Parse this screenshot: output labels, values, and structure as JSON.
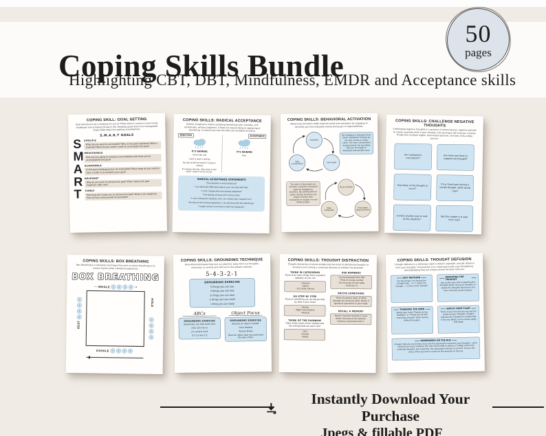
{
  "header": {
    "title": "Coping Skills Bundle",
    "subtitle": "Highlighting CBT, DBT, Mindfulness, EMDR and Acceptance skills",
    "badge": {
      "number": "50",
      "label": "pages"
    }
  },
  "footer": {
    "line1": "Instantly Download Your Purchase",
    "line2": "Jpegs & fillable PDF"
  },
  "colors": {
    "background": "#f0ebe4",
    "header_band": "#fcfbf9",
    "paper": "#fffefd",
    "blue_box": "#cfe4f0",
    "tan_box": "#e9e1d7",
    "badge_fill": "#dde3ea",
    "ink": "#1c1c1c"
  },
  "pages": {
    "goal_setting": {
      "title": "COPING SKILL: GOAL SETTING",
      "intro": "Goal setting acts as a roadmap for you to follow when it comes to overcoming challenges and achieving things in life. Breaking goals down into manageable steps helps keep from getting overwhelmed.",
      "subheading": "S.M.A.R.T GOALS",
      "items": [
        {
          "letter": "S",
          "label": "SPECIFIC",
          "text": "What do you want to accomplish? Why is this goal important? Who is involved? What do you need in order to accomplish this goal?"
        },
        {
          "letter": "M",
          "label": "MEASURABLE",
          "text": "How are you going to measure your progress and know you've accomplished this goal?"
        },
        {
          "letter": "A",
          "label": "ACHIEVABLE",
          "text": "Is this goal challenging but not impossible? What steps do you need to take in order to accomplish your goal?"
        },
        {
          "letter": "R",
          "label": "RELEVANT",
          "text": "Why do you want to achieve this goal? What makes this goal important right now?"
        },
        {
          "letter": "T",
          "label": "TIMELY",
          "text": "How long will it take you to achieve this goal? What is the deadline? How will you hold yourself accountable?"
        }
      ]
    },
    "radical_acceptance": {
      "title": "COPING SKILLS: RADICAL ACCEPTANCE",
      "intro": "Radical acceptance means accepting something fully, mentally, and emotionally, without judgment. It does not require liking or approving of something. It means only that the facts are accepted as reality.",
      "left": {
        "label": "REJECTION",
        "caption": "IT'S RAINING",
        "lines": [
          "I don't like rain",
          "I wish it wasn't raining",
          "My day would be better if it wasn't raining",
          "It's always like this. Why does it rain when I want it to be sunny?"
        ]
      },
      "right": {
        "label": "ACCEPTANCE",
        "caption": "IT'S RAINING",
        "lines": [
          "Yeah."
        ]
      },
      "box": {
        "title": "RADICAL ACCEPTANCE STATEMENTS",
        "lines": [
          "\"This situation is only temporary\"",
          "\"I've dealt with difficulties before and I can deal with this\"",
          "\"I can't change what has already happened\"",
          "\"This feeling will pass and I will be okay\"",
          "\"I can't change the situation, but I can control how I respond to it\"",
          "\"It's okay to feel anxious/upset/sad. I can still deal with this effectively\"",
          "\"I might not like it, but this is what has happened\""
        ]
      }
    },
    "behavioral_activation": {
      "title": "COPING SKILLS:  BEHAVIORAL ACTIVATION",
      "intro": "Behavioral activation helps improve mood and motivation by engaging in activities you find enjoyable and by being part of responsibilities.",
      "cycle1": [
        "Inactivity",
        "Low mood",
        "Stay unmotivated"
      ],
      "note1": "By engaging in behaviors that cause unpleasant feelings we can then create a vicious cycle. The more unmotivated a person feels, the less likely they are to engage in behaviors that benefit them.",
      "note2": "The idea is that people can 'activate' a positive emotional state by engaging in activities. By starting with an easier activity someone can slowly increase their motivation to engage in more difficult tasks.",
      "cycle2": [
        "Do an activity",
        "Feel better about yourself",
        "More motivation"
      ]
    },
    "challenge_negative_thoughts": {
      "title": "COPING SKILLS:  CHALLENGE NEGATIVE THOUGHTS",
      "intro": "Challenging negative thoughts is a practice of reframing your negative self-talk to create a positive shift in your mindset. This technique will help you consider things from multiple angles, facts-based opinions, and look at the whole picture.",
      "cards": [
        "Am I jumping to conclusions?",
        "Are there any facts to support this thought?",
        "How likely is this thought to occur?",
        "If my friend was having a similar thought, what would I say?",
        "Is there another way to look at the situation?",
        "Will this matter in a year from now?"
      ]
    },
    "box_breathing": {
      "title": "COPING SKILLS: BOX BREATHING",
      "intro": "Box Breathing is a relaxation technique that aims to return breathing to its normal rhythm after a stressful experience.",
      "display_title": "BOX BREATHING",
      "sides": {
        "top": "INHALE",
        "right": "HOLD",
        "bottom": "EXHALE",
        "left": "REST"
      },
      "counts": [
        "1",
        "2",
        "3",
        "4"
      ]
    },
    "grounding_technique": {
      "title": "COPING SKILLS:  GROUNDING TECHNIQUE",
      "intro": "Grounding techniques help turn our attention away from our thoughts, memories, or worries and refocus on the present moment.",
      "five": {
        "heading": "5-4-3-2-1",
        "box_title": "GROUNDING EXERCISE",
        "lines": [
          "5 things you can see",
          "4 things you can feel",
          "3 things you can hear",
          "2 things you can smell",
          "1 thing you can taste"
        ]
      },
      "abcs": {
        "heading": "ABCs",
        "box_title": "GROUNDING EXERCISE",
        "lines": [
          "Something I see that starts with:",
          "A B C D E F G H I",
          "J K L M N O P Q R",
          "S T U V W X Y Z"
        ]
      },
      "object_focus": {
        "heading": "Object Focus",
        "box_title": "GROUNDING EXERCISE",
        "lines": [
          "Describe an object in detail:",
          "Color      Shadow",
          "Texture      Shape",
          "Touch an object near you and notice the way it feels."
        ]
      }
    },
    "thought_distraction": {
      "title": "COPING SKILLS:  THOUGHT DISTRACTION",
      "intro": "Thought distraction involves recognizing the onset of distressing thoughts or emotions and making a conscious decision to redirect the attention.",
      "left_sections": [
        {
          "h": "THINK IN CATEGORIES",
          "text": "Think of as many things from a random category as you can",
          "box": [
            "- Animals",
            "- Sports",
            "- Ice Cream Flavors"
          ]
        },
        {
          "h": "GO STEP BY STEP",
          "text": "Think of something you do and go step by step in your head",
          "box": [
            "- Recipe",
            "- Night Time Routine",
            "- Packing"
          ]
        },
        {
          "h": "THINK OF THE RAINBOW",
          "text": "Think of the colors of the rainbow and list 3 things that are each color",
          "box": [
            "- Red",
            "- Orange",
            "- Yellow"
          ]
        }
      ],
      "right_sections": [
        {
          "h": "USE NUMBERS",
          "box": [
            "- Count backward from 100",
            "- Think of a large number",
            "- Run through a times table",
            "- Count by 7s"
          ]
        },
        {
          "h": "RECITE SOMETHING",
          "box": [
            "Think of a poem, song, or book passage you know by heart. Recite it quietly to yourself or in your head."
          ]
        },
        {
          "h": "RECALL A MEMORY",
          "box": [
            "Recall a favorite memory in vivid detail, focusing on the positive emotions associated with it."
          ]
        }
      ]
    },
    "thought_defusion": {
      "title": "COPING SKILLS:  THOUGHT DEFUSION",
      "intro": "Thought defusion is a technique used to detach, separate, and get distance from your thoughts. The purpose is to create space with your thoughts by acknowledging they are simply stories the brain tells you.",
      "boxes": [
        {
          "h": "JUST NOTICING",
          "text": "Put the phrase \"I'm having the thought that...\" or \"I notice my thought...\" in front of the thought"
        },
        {
          "h": "REPEATING THE THOUGHT",
          "text": "Use a silly voice when repeating the thoughts aloud, sing your thoughts, or repeat the thoughts aloud over and over until only sound remains."
        },
        {
          "h": "THANKING THE MIND",
          "text": "Telling your mind \"Thanks for the feedback\" or \"Thank you for this interesting thought\" when having difficult thoughts."
        },
        {
          "h": "WATCH THEM FLOAT",
          "text": "Think of your mind as the sky and the clouds as your thoughts. Imagine placing your thoughts on clouds high in the sky. Watch as the clouds slowly drift away."
        }
      ],
      "wide_box": {
        "h": "PASSENGERS ON THE BUS",
        "text": "Imagine that you are driving a bus and the passengers represent your thoughts - some rational and some irrational. You may not be able to silence or totally control the irrational thoughts, but remember, the passengers will get on and off. You are the driver of the bus and in control of the direction of the bus."
      }
    }
  }
}
